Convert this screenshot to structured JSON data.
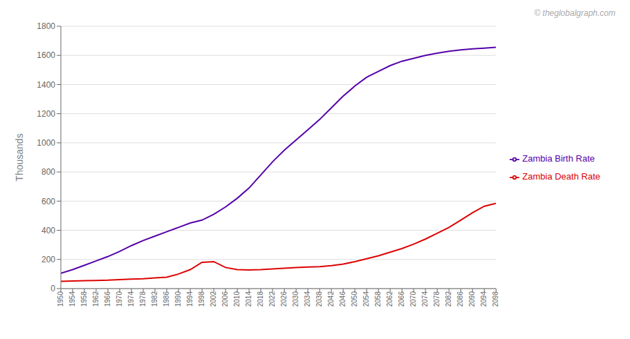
{
  "chart_data": {
    "type": "line",
    "x": [
      1950,
      1954,
      1958,
      1962,
      1966,
      1970,
      1974,
      1978,
      1982,
      1986,
      1990,
      1994,
      1998,
      2002,
      2006,
      2010,
      2014,
      2018,
      2022,
      2026,
      2030,
      2034,
      2038,
      2042,
      2046,
      2050,
      2054,
      2058,
      2062,
      2066,
      2070,
      2074,
      2078,
      2082,
      2086,
      2090,
      2094,
      2098
    ],
    "xlim": [
      1950,
      2098
    ],
    "xticks": [
      1950,
      1954,
      1958,
      1962,
      1966,
      1970,
      1974,
      1978,
      1982,
      1986,
      1990,
      1994,
      1998,
      2002,
      2006,
      2010,
      2014,
      2018,
      2022,
      2026,
      2030,
      2034,
      2038,
      2042,
      2046,
      2050,
      2054,
      2058,
      2062,
      2066,
      2070,
      2074,
      2078,
      2082,
      2086,
      2090,
      2094,
      2098
    ],
    "ylabel": "Thousands",
    "ylim": [
      0,
      1800
    ],
    "yticks": [
      0,
      200,
      400,
      600,
      800,
      1000,
      1200,
      1400,
      1600,
      1800
    ],
    "grid": true,
    "legend": "right",
    "annotations": [
      "© theglobalgraph.com"
    ],
    "series": [
      {
        "name": "Zambia Birth Rate",
        "color": "#5500aa",
        "values": [
          105,
          130,
          160,
          190,
          220,
          255,
          295,
          330,
          360,
          390,
          420,
          450,
          470,
          510,
          560,
          620,
          690,
          780,
          870,
          950,
          1020,
          1090,
          1160,
          1240,
          1320,
          1390,
          1450,
          1490,
          1530,
          1560,
          1580,
          1600,
          1615,
          1628,
          1638,
          1645,
          1650,
          1655
        ]
      },
      {
        "name": "Zambia Death Rate",
        "color": "#dd0000",
        "values": [
          50,
          52,
          54,
          56,
          58,
          62,
          65,
          68,
          73,
          78,
          100,
          130,
          180,
          185,
          145,
          130,
          128,
          130,
          135,
          140,
          145,
          148,
          150,
          158,
          168,
          185,
          205,
          225,
          250,
          275,
          305,
          340,
          380,
          420,
          470,
          520,
          565,
          585
        ]
      }
    ]
  }
}
